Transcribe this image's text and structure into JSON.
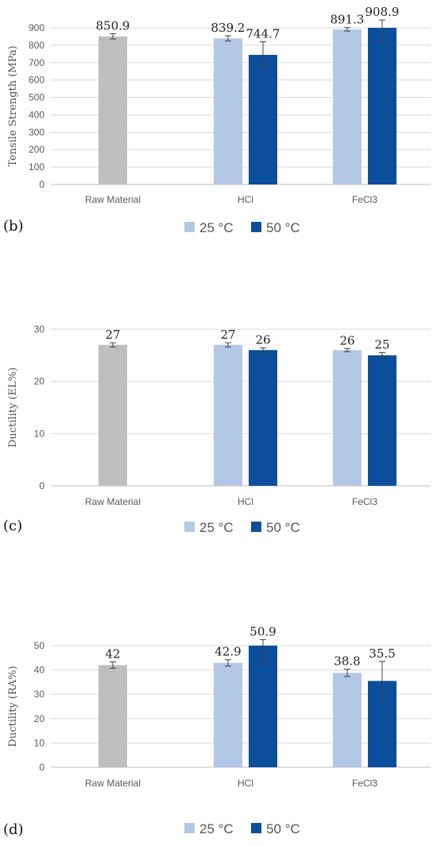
{
  "chart_data": [
    {
      "type": "bar",
      "panel_label": "(b)",
      "ylabel": "Tensile Strength (MPa)",
      "ylim": [
        0,
        900
      ],
      "yticks": [
        0,
        100,
        200,
        300,
        400,
        500,
        600,
        700,
        800,
        900
      ],
      "categories": [
        "Raw Material",
        "HCl",
        "FeCl3"
      ],
      "raw_value": 850.9,
      "raw_error": 15,
      "raw_label": "850.9",
      "series": [
        {
          "name": "25 °C",
          "values": [
            null,
            839.2,
            891.3
          ],
          "errors": [
            null,
            15,
            10
          ],
          "labels": [
            "",
            "839.2",
            "891.3"
          ]
        },
        {
          "name": "50 °C",
          "values": [
            null,
            744.7,
            908.9
          ],
          "errors": [
            null,
            75,
            80
          ],
          "labels": [
            "",
            "744.7",
            "908.9"
          ]
        }
      ],
      "grid": true
    },
    {
      "type": "bar",
      "panel_label": "(c)",
      "ylabel": "Ductility (EL%)",
      "ylim": [
        0,
        30
      ],
      "yticks": [
        0,
        10,
        20,
        30
      ],
      "categories": [
        "Raw Material",
        "HCl",
        "FeCl3"
      ],
      "raw_value": 27,
      "raw_error": 0.4,
      "raw_label": "27",
      "series": [
        {
          "name": "25 °C",
          "values": [
            null,
            27,
            26
          ],
          "errors": [
            null,
            0.4,
            0.3
          ],
          "labels": [
            "",
            "27",
            "26"
          ]
        },
        {
          "name": "50 °C",
          "values": [
            null,
            26,
            25
          ],
          "errors": [
            null,
            0.4,
            0.5
          ],
          "labels": [
            "",
            "26",
            "25"
          ]
        }
      ],
      "grid": true
    },
    {
      "type": "bar",
      "panel_label": "(d)",
      "ylabel": "Ductility (RA%)",
      "ylim": [
        0,
        50
      ],
      "yticks": [
        0,
        10,
        20,
        30,
        40,
        50
      ],
      "categories": [
        "Raw Material",
        "HCl",
        "FeCl3"
      ],
      "raw_value": 42,
      "raw_error": 1.3,
      "raw_label": "42",
      "series": [
        {
          "name": "25 °C",
          "values": [
            null,
            42.9,
            38.8
          ],
          "errors": [
            null,
            1.3,
            1.5
          ],
          "labels": [
            "",
            "42.9",
            "38.8"
          ]
        },
        {
          "name": "50 °C",
          "values": [
            null,
            50.9,
            35.5
          ],
          "errors": [
            null,
            8,
            8
          ],
          "labels": [
            "",
            "50.9",
            "35.5"
          ]
        }
      ],
      "grid": true
    }
  ],
  "colors": {
    "raw": "#bfbfbf",
    "c25": "#b4c7e7",
    "c50": "#0b4f9c",
    "grid": "#d9d9d9",
    "axis": "#bfbfbf",
    "error": "#404040"
  },
  "legend": {
    "placement": "bottom",
    "items": [
      "25 °C",
      "50 °C"
    ]
  }
}
